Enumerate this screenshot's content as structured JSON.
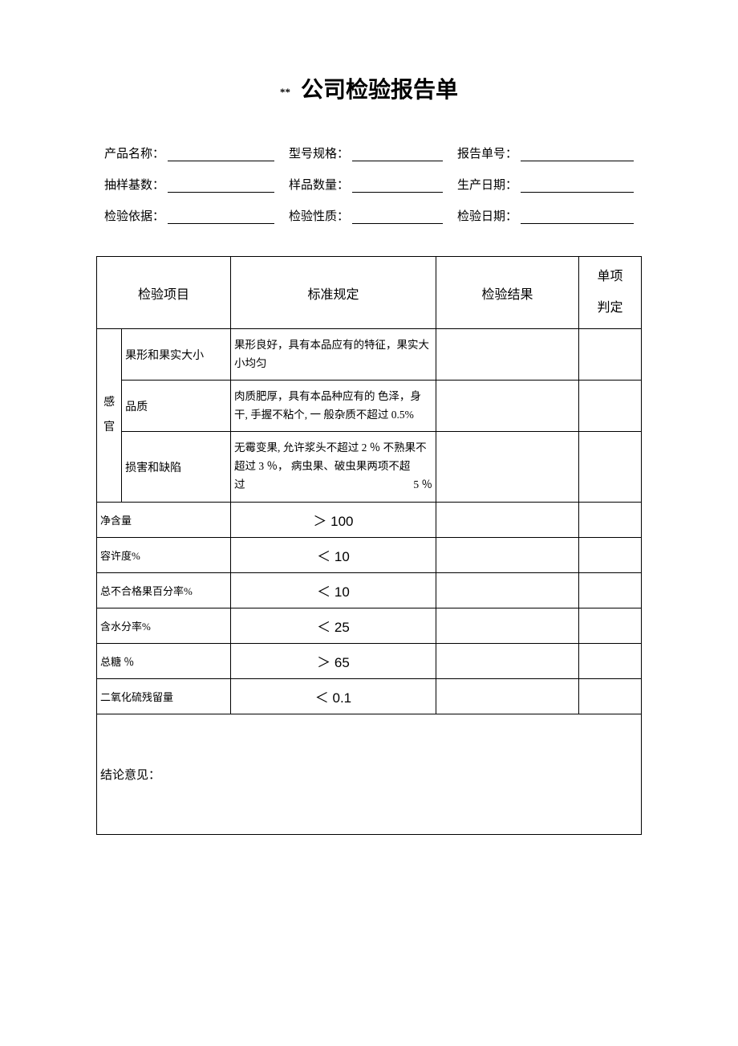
{
  "title_prefix": "**",
  "title": "公司检验报告单",
  "fields": {
    "row1": {
      "f1": "产品名称：",
      "f2": "型号规格：",
      "f3": "报告单号："
    },
    "row2": {
      "f1": "抽样基数：",
      "f2": "样品数量：",
      "f3": "生产日期："
    },
    "row3": {
      "f1": "检验依据：",
      "f2": "检验性质：",
      "f3": "检验日期："
    }
  },
  "headers": {
    "item": "检验项目",
    "standard": "标准规定",
    "result": "检验结果",
    "judgement_l1": "单项",
    "judgement_l2": "判定"
  },
  "sensory_group": "感 官",
  "rows": {
    "r1": {
      "item": "果形和果实大小",
      "std": "果形良好，具有本品应有的特征，果实大小均匀"
    },
    "r2": {
      "item": "品质",
      "std": "肉质肥厚，具有本品种应有的 色泽，身干, 手握不粘个, 一 般杂质不超过 0.5%"
    },
    "r3": {
      "item": "损害和缺陷",
      "std_part1": "无霉变果, 允许浆头不超过 2 ％ 不熟果不超过 3 ％， 病虫果、破虫果两项不超",
      "std_part2_a": "过",
      "std_part2_b": "5 ％"
    },
    "r4": {
      "item": "净含量",
      "std": "＞ 100"
    },
    "r5": {
      "item": "容许度%",
      "std": "＜ 10"
    },
    "r6": {
      "item": "总不合格果百分率%",
      "std": "＜ 10"
    },
    "r7": {
      "item": "含水分率%",
      "std": "＜ 25"
    },
    "r8": {
      "item": "总糖 ％",
      "std": "＞ 65"
    },
    "r9": {
      "item": "二氧化硫残留量",
      "std": "＜ 0.1"
    }
  },
  "conclusion_label": "结论意见："
}
